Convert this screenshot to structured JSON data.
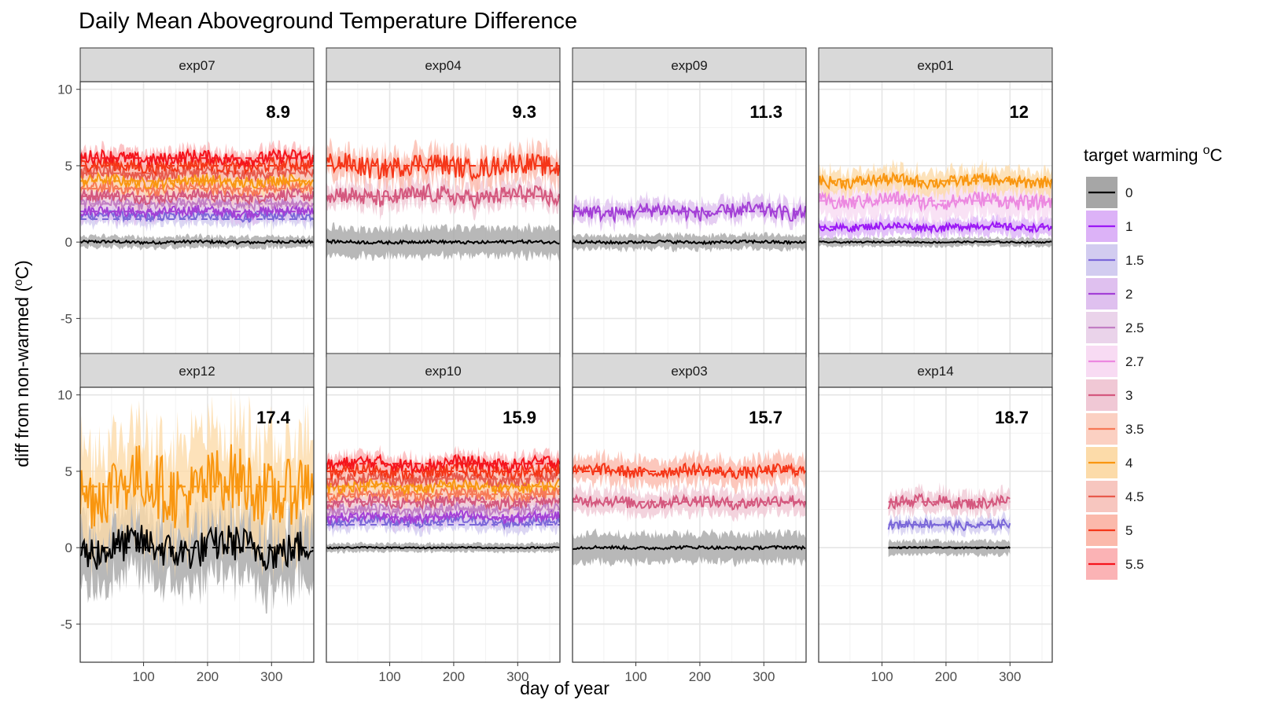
{
  "chart_data": {
    "type": "line",
    "title": "Daily Mean Aboveground Temperature Difference",
    "xlabel": "day of year",
    "ylabel": "diff from non-warmed (",
    "ylabel_sup": "o",
    "ylabel_unit": "C)",
    "xlim": [
      1,
      366
    ],
    "ylim": [
      -7.5,
      10.5
    ],
    "x_ticks": [
      100,
      200,
      300
    ],
    "y_ticks": [
      -5,
      0,
      5,
      10
    ],
    "y_tick_labels": [
      "-5",
      "0",
      "5",
      "10"
    ],
    "grid": true,
    "legend": {
      "title": "target warming ",
      "title_sup": "o",
      "title_unit": "C",
      "placement": "right",
      "entries": [
        {
          "label": "0",
          "color": "#000000",
          "fill": "#a6a6a6"
        },
        {
          "label": "1",
          "color": "#9b19f5",
          "fill": "#dcb2f7"
        },
        {
          "label": "1.5",
          "color": "#7b68d9",
          "fill": "#d2ccf0"
        },
        {
          "label": "2",
          "color": "#a33fd6",
          "fill": "#dfc0ef"
        },
        {
          "label": "2.5",
          "color": "#c27ec4",
          "fill": "#ead3ea"
        },
        {
          "label": "2.7",
          "color": "#ec88e0",
          "fill": "#f8dbf3"
        },
        {
          "label": "3",
          "color": "#d4587e",
          "fill": "#f0c8d5"
        },
        {
          "label": "3.5",
          "color": "#f77956",
          "fill": "#fbd0c2"
        },
        {
          "label": "4",
          "color": "#f9960f",
          "fill": "#fcdba9"
        },
        {
          "label": "4.5",
          "color": "#e85a4c",
          "fill": "#f7c6bf"
        },
        {
          "label": "5",
          "color": "#f53618",
          "fill": "#fbb9ab"
        },
        {
          "label": "5.5",
          "color": "#f5141c",
          "fill": "#fbb3b5"
        }
      ]
    },
    "panels": [
      {
        "name": "exp07",
        "annotation": "8.9",
        "series": [
          {
            "target": "0",
            "start": 1,
            "end": 366,
            "mean": 0.0,
            "amp": 0.1,
            "band": 0.4,
            "dashed": false
          },
          {
            "target": "1.5",
            "start": 1,
            "end": 366,
            "mean": 1.7,
            "amp": 0.3,
            "band": 0.6,
            "dashed": true
          },
          {
            "target": "2",
            "start": 1,
            "end": 366,
            "mean": 2.0,
            "amp": 0.35,
            "band": 0.6,
            "dashed": true
          },
          {
            "target": "2.5",
            "start": 1,
            "end": 366,
            "mean": 2.5,
            "amp": 0.35,
            "band": 0.6,
            "dashed": true
          },
          {
            "target": "3",
            "start": 1,
            "end": 366,
            "mean": 3.0,
            "amp": 0.4,
            "band": 0.6,
            "dashed": true
          },
          {
            "target": "3.5",
            "start": 1,
            "end": 366,
            "mean": 3.5,
            "amp": 0.4,
            "band": 0.6,
            "dashed": true
          },
          {
            "target": "4",
            "start": 1,
            "end": 366,
            "mean": 4.0,
            "amp": 0.4,
            "band": 0.6,
            "dashed": true
          },
          {
            "target": "4.5",
            "start": 1,
            "end": 366,
            "mean": 4.5,
            "amp": 0.4,
            "band": 0.6,
            "dashed": true
          },
          {
            "target": "5",
            "start": 1,
            "end": 366,
            "mean": 5.0,
            "amp": 0.45,
            "band": 0.6,
            "dashed": true
          },
          {
            "target": "5.5",
            "start": 1,
            "end": 366,
            "mean": 5.5,
            "amp": 0.45,
            "band": 0.6,
            "dashed": true
          }
        ]
      },
      {
        "name": "exp04",
        "annotation": "9.3",
        "series": [
          {
            "target": "0",
            "start": 1,
            "end": 366,
            "mean": 0.0,
            "amp": 0.1,
            "band": 1.0,
            "dashed": false
          },
          {
            "target": "3",
            "start": 1,
            "end": 366,
            "mean": 3.0,
            "amp": 0.6,
            "band": 0.8,
            "dashed": true
          },
          {
            "target": "5",
            "start": 1,
            "end": 366,
            "mean": 5.0,
            "amp": 0.7,
            "band": 1.0,
            "dashed": true
          }
        ]
      },
      {
        "name": "exp09",
        "annotation": "11.3",
        "series": [
          {
            "target": "0",
            "start": 1,
            "end": 366,
            "mean": 0.0,
            "amp": 0.1,
            "band": 0.5,
            "dashed": false
          },
          {
            "target": "2",
            "start": 1,
            "end": 366,
            "mean": 2.0,
            "amp": 0.5,
            "band": 0.7,
            "dashed": true
          }
        ]
      },
      {
        "name": "exp01",
        "annotation": "12",
        "series": [
          {
            "target": "0",
            "start": 1,
            "end": 366,
            "mean": 0.0,
            "amp": 0.05,
            "band": 0.3,
            "dashed": false
          },
          {
            "target": "1",
            "start": 1,
            "end": 366,
            "mean": 1.0,
            "amp": 0.25,
            "band": 0.6,
            "dashed": true
          },
          {
            "target": "2.7",
            "start": 1,
            "end": 366,
            "mean": 2.7,
            "amp": 0.5,
            "band": 1.2,
            "dashed": true
          },
          {
            "target": "4",
            "start": 1,
            "end": 366,
            "mean": 4.0,
            "amp": 0.4,
            "band": 0.8,
            "dashed": true
          }
        ]
      },
      {
        "name": "exp12",
        "annotation": "17.4",
        "series": [
          {
            "target": "0",
            "start": 1,
            "end": 366,
            "mean": 0.0,
            "amp": 1.2,
            "band": 2.5,
            "dashed": true
          },
          {
            "target": "4",
            "start": 1,
            "end": 366,
            "mean": 4.0,
            "amp": 2.2,
            "band": 3.5,
            "dashed": true
          }
        ]
      },
      {
        "name": "exp10",
        "annotation": "15.9",
        "series": [
          {
            "target": "0",
            "start": 1,
            "end": 366,
            "mean": 0.0,
            "amp": 0.05,
            "band": 0.3,
            "dashed": false
          },
          {
            "target": "1.5",
            "start": 1,
            "end": 366,
            "mean": 1.7,
            "amp": 0.3,
            "band": 0.6,
            "dashed": true
          },
          {
            "target": "2",
            "start": 1,
            "end": 366,
            "mean": 2.0,
            "amp": 0.35,
            "band": 0.6,
            "dashed": true
          },
          {
            "target": "2.5",
            "start": 1,
            "end": 366,
            "mean": 2.5,
            "amp": 0.35,
            "band": 0.6,
            "dashed": true
          },
          {
            "target": "3",
            "start": 1,
            "end": 366,
            "mean": 3.0,
            "amp": 0.4,
            "band": 0.6,
            "dashed": true
          },
          {
            "target": "3.5",
            "start": 1,
            "end": 366,
            "mean": 3.5,
            "amp": 0.4,
            "band": 0.6,
            "dashed": true
          },
          {
            "target": "4",
            "start": 1,
            "end": 366,
            "mean": 4.0,
            "amp": 0.4,
            "band": 0.6,
            "dashed": true
          },
          {
            "target": "4.5",
            "start": 1,
            "end": 366,
            "mean": 4.5,
            "amp": 0.4,
            "band": 0.6,
            "dashed": true
          },
          {
            "target": "5",
            "start": 1,
            "end": 366,
            "mean": 5.0,
            "amp": 0.45,
            "band": 0.6,
            "dashed": true
          },
          {
            "target": "5.5",
            "start": 1,
            "end": 366,
            "mean": 5.5,
            "amp": 0.45,
            "band": 0.6,
            "dashed": true
          }
        ]
      },
      {
        "name": "exp03",
        "annotation": "15.7",
        "series": [
          {
            "target": "0",
            "start": 1,
            "end": 366,
            "mean": 0.0,
            "amp": 0.1,
            "band": 1.0,
            "dashed": false
          },
          {
            "target": "3",
            "start": 1,
            "end": 366,
            "mean": 3.0,
            "amp": 0.4,
            "band": 0.8,
            "dashed": true
          },
          {
            "target": "5",
            "start": 1,
            "end": 366,
            "mean": 5.0,
            "amp": 0.4,
            "band": 0.9,
            "dashed": true
          }
        ]
      },
      {
        "name": "exp14",
        "annotation": "18.7",
        "series": [
          {
            "target": "0",
            "start": 110,
            "end": 300,
            "mean": 0.0,
            "amp": 0.05,
            "band": 0.5,
            "dashed": true
          },
          {
            "target": "1.5",
            "start": 110,
            "end": 300,
            "mean": 1.5,
            "amp": 0.3,
            "band": 0.5,
            "dashed": true
          },
          {
            "target": "3",
            "start": 110,
            "end": 300,
            "mean": 3.0,
            "amp": 0.4,
            "band": 0.7,
            "dashed": true
          }
        ]
      }
    ]
  }
}
